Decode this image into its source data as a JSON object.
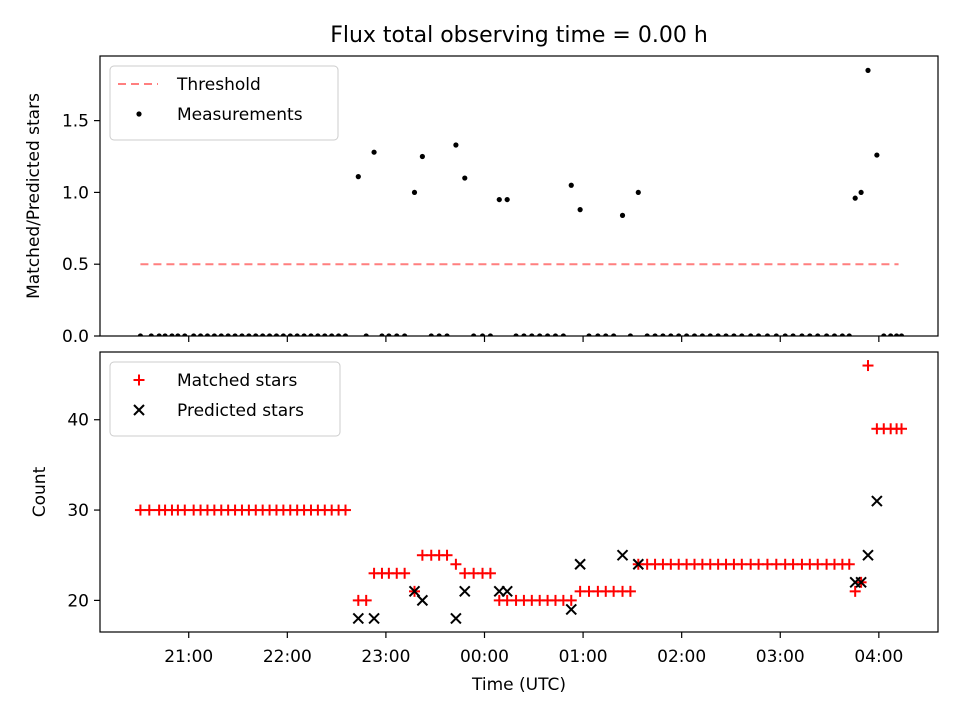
{
  "figure": {
    "title": "Flux total observing time = 0.00 h",
    "xlabel": "Time (UTC)",
    "xticks": [
      {
        "t": 20.9,
        "label": "21:00"
      },
      {
        "t": 21.9,
        "label": "22:00"
      },
      {
        "t": 22.9,
        "label": "23:00"
      },
      {
        "t": 23.9,
        "label": "00:00"
      },
      {
        "t": 24.9,
        "label": "01:00"
      },
      {
        "t": 25.9,
        "label": "02:00"
      },
      {
        "t": 26.9,
        "label": "03:00"
      },
      {
        "t": 27.9,
        "label": "04:00"
      }
    ],
    "xlim": [
      20.0,
      28.5
    ]
  },
  "chart_data": [
    {
      "type": "scatter",
      "ylabel": "Matched/Predicted stars",
      "ylim": [
        0,
        1.95
      ],
      "yticks": [
        0.0,
        0.5,
        1.0,
        1.5
      ],
      "ytick_labels": [
        "0.0",
        "0.5",
        "1.0",
        "1.5"
      ],
      "legend": {
        "position": "top-left",
        "entries": [
          "Threshold",
          "Measurements"
        ]
      },
      "threshold": {
        "name": "Threshold",
        "y": 0.5,
        "x_range": [
          20.41,
          28.1
        ],
        "color": "#ff7f7f",
        "style": "dashed"
      },
      "series": [
        {
          "name": "Measurements",
          "color": "#000000",
          "points": [
            {
              "x": 20.41,
              "y": 0
            },
            {
              "x": 20.52,
              "y": 0
            },
            {
              "x": 20.6,
              "y": 0
            },
            {
              "x": 20.66,
              "y": 0
            },
            {
              "x": 20.73,
              "y": 0
            },
            {
              "x": 20.79,
              "y": 0
            },
            {
              "x": 20.86,
              "y": 0
            },
            {
              "x": 20.95,
              "y": 0
            },
            {
              "x": 21.02,
              "y": 0
            },
            {
              "x": 21.09,
              "y": 0
            },
            {
              "x": 21.16,
              "y": 0
            },
            {
              "x": 21.23,
              "y": 0
            },
            {
              "x": 21.3,
              "y": 0
            },
            {
              "x": 21.37,
              "y": 0
            },
            {
              "x": 21.44,
              "y": 0
            },
            {
              "x": 21.51,
              "y": 0
            },
            {
              "x": 21.58,
              "y": 0
            },
            {
              "x": 21.65,
              "y": 0
            },
            {
              "x": 21.72,
              "y": 0
            },
            {
              "x": 21.79,
              "y": 0
            },
            {
              "x": 21.86,
              "y": 0
            },
            {
              "x": 21.93,
              "y": 0
            },
            {
              "x": 22.0,
              "y": 0
            },
            {
              "x": 22.07,
              "y": 0
            },
            {
              "x": 22.14,
              "y": 0
            },
            {
              "x": 22.21,
              "y": 0
            },
            {
              "x": 22.28,
              "y": 0
            },
            {
              "x": 22.35,
              "y": 0
            },
            {
              "x": 22.42,
              "y": 0
            },
            {
              "x": 22.49,
              "y": 0
            },
            {
              "x": 22.62,
              "y": 1.11
            },
            {
              "x": 22.7,
              "y": 0
            },
            {
              "x": 22.78,
              "y": 1.28
            },
            {
              "x": 22.86,
              "y": 0
            },
            {
              "x": 22.93,
              "y": 0
            },
            {
              "x": 23.01,
              "y": 0
            },
            {
              "x": 23.09,
              "y": 0
            },
            {
              "x": 23.19,
              "y": 1.0
            },
            {
              "x": 23.27,
              "y": 1.25
            },
            {
              "x": 23.36,
              "y": 0
            },
            {
              "x": 23.44,
              "y": 0
            },
            {
              "x": 23.52,
              "y": 0
            },
            {
              "x": 23.61,
              "y": 1.33
            },
            {
              "x": 23.7,
              "y": 1.1
            },
            {
              "x": 23.79,
              "y": 0
            },
            {
              "x": 23.88,
              "y": 0
            },
            {
              "x": 23.96,
              "y": 0
            },
            {
              "x": 24.05,
              "y": 0.95
            },
            {
              "x": 24.13,
              "y": 0.95
            },
            {
              "x": 24.22,
              "y": 0
            },
            {
              "x": 24.3,
              "y": 0
            },
            {
              "x": 24.38,
              "y": 0
            },
            {
              "x": 24.46,
              "y": 0
            },
            {
              "x": 24.54,
              "y": 0
            },
            {
              "x": 24.62,
              "y": 0
            },
            {
              "x": 24.7,
              "y": 0
            },
            {
              "x": 24.78,
              "y": 1.05
            },
            {
              "x": 24.87,
              "y": 0.88
            },
            {
              "x": 24.96,
              "y": 0
            },
            {
              "x": 25.05,
              "y": 0
            },
            {
              "x": 25.13,
              "y": 0
            },
            {
              "x": 25.21,
              "y": 0
            },
            {
              "x": 25.3,
              "y": 0.84
            },
            {
              "x": 25.38,
              "y": 0
            },
            {
              "x": 25.46,
              "y": 1.0
            },
            {
              "x": 25.55,
              "y": 0
            },
            {
              "x": 25.63,
              "y": 0
            },
            {
              "x": 25.71,
              "y": 0
            },
            {
              "x": 25.79,
              "y": 0
            },
            {
              "x": 25.87,
              "y": 0
            },
            {
              "x": 25.95,
              "y": 0
            },
            {
              "x": 26.03,
              "y": 0
            },
            {
              "x": 26.11,
              "y": 0
            },
            {
              "x": 26.19,
              "y": 0
            },
            {
              "x": 26.27,
              "y": 0
            },
            {
              "x": 26.35,
              "y": 0
            },
            {
              "x": 26.43,
              "y": 0
            },
            {
              "x": 26.51,
              "y": 0
            },
            {
              "x": 26.6,
              "y": 0
            },
            {
              "x": 26.68,
              "y": 0
            },
            {
              "x": 26.77,
              "y": 0
            },
            {
              "x": 26.86,
              "y": 0
            },
            {
              "x": 26.95,
              "y": 0
            },
            {
              "x": 27.03,
              "y": 0
            },
            {
              "x": 27.12,
              "y": 0
            },
            {
              "x": 27.2,
              "y": 0
            },
            {
              "x": 27.28,
              "y": 0
            },
            {
              "x": 27.37,
              "y": 0
            },
            {
              "x": 27.45,
              "y": 0
            },
            {
              "x": 27.53,
              "y": 0
            },
            {
              "x": 27.6,
              "y": 0
            },
            {
              "x": 27.66,
              "y": 0.96
            },
            {
              "x": 27.72,
              "y": 1.0
            },
            {
              "x": 27.79,
              "y": 1.85
            },
            {
              "x": 27.88,
              "y": 1.26
            },
            {
              "x": 27.95,
              "y": 0
            },
            {
              "x": 28.02,
              "y": 0
            },
            {
              "x": 28.08,
              "y": 0
            },
            {
              "x": 28.13,
              "y": 0
            }
          ]
        }
      ]
    },
    {
      "type": "scatter",
      "ylabel": "Count",
      "ylim": [
        16.5,
        47.5
      ],
      "yticks": [
        20,
        30,
        40
      ],
      "ytick_labels": [
        "20",
        "30",
        "40"
      ],
      "legend": {
        "position": "top-left",
        "entries": [
          "Matched stars",
          "Predicted stars"
        ]
      },
      "series": [
        {
          "name": "Matched stars",
          "marker": "plus",
          "color": "#ff0000",
          "points": [
            {
              "x": 20.41,
              "y": 30
            },
            {
              "x": 20.5,
              "y": 30
            },
            {
              "x": 20.6,
              "y": 30
            },
            {
              "x": 20.66,
              "y": 30
            },
            {
              "x": 20.73,
              "y": 30
            },
            {
              "x": 20.79,
              "y": 30
            },
            {
              "x": 20.86,
              "y": 30
            },
            {
              "x": 20.95,
              "y": 30
            },
            {
              "x": 21.02,
              "y": 30
            },
            {
              "x": 21.09,
              "y": 30
            },
            {
              "x": 21.16,
              "y": 30
            },
            {
              "x": 21.23,
              "y": 30
            },
            {
              "x": 21.3,
              "y": 30
            },
            {
              "x": 21.37,
              "y": 30
            },
            {
              "x": 21.44,
              "y": 30
            },
            {
              "x": 21.51,
              "y": 30
            },
            {
              "x": 21.58,
              "y": 30
            },
            {
              "x": 21.65,
              "y": 30
            },
            {
              "x": 21.72,
              "y": 30
            },
            {
              "x": 21.79,
              "y": 30
            },
            {
              "x": 21.86,
              "y": 30
            },
            {
              "x": 21.93,
              "y": 30
            },
            {
              "x": 22.0,
              "y": 30
            },
            {
              "x": 22.07,
              "y": 30
            },
            {
              "x": 22.14,
              "y": 30
            },
            {
              "x": 22.21,
              "y": 30
            },
            {
              "x": 22.28,
              "y": 30
            },
            {
              "x": 22.35,
              "y": 30
            },
            {
              "x": 22.42,
              "y": 30
            },
            {
              "x": 22.49,
              "y": 30
            },
            {
              "x": 22.62,
              "y": 20
            },
            {
              "x": 22.7,
              "y": 20
            },
            {
              "x": 22.78,
              "y": 23
            },
            {
              "x": 22.86,
              "y": 23
            },
            {
              "x": 22.93,
              "y": 23
            },
            {
              "x": 23.01,
              "y": 23
            },
            {
              "x": 23.09,
              "y": 23
            },
            {
              "x": 23.19,
              "y": 21
            },
            {
              "x": 23.27,
              "y": 25
            },
            {
              "x": 23.36,
              "y": 25
            },
            {
              "x": 23.44,
              "y": 25
            },
            {
              "x": 23.52,
              "y": 25
            },
            {
              "x": 23.61,
              "y": 24
            },
            {
              "x": 23.7,
              "y": 23
            },
            {
              "x": 23.79,
              "y": 23
            },
            {
              "x": 23.88,
              "y": 23
            },
            {
              "x": 23.96,
              "y": 23
            },
            {
              "x": 24.05,
              "y": 20
            },
            {
              "x": 24.13,
              "y": 20
            },
            {
              "x": 24.22,
              "y": 20
            },
            {
              "x": 24.3,
              "y": 20
            },
            {
              "x": 24.38,
              "y": 20
            },
            {
              "x": 24.46,
              "y": 20
            },
            {
              "x": 24.54,
              "y": 20
            },
            {
              "x": 24.62,
              "y": 20
            },
            {
              "x": 24.7,
              "y": 20
            },
            {
              "x": 24.78,
              "y": 20
            },
            {
              "x": 24.87,
              "y": 21
            },
            {
              "x": 24.96,
              "y": 21
            },
            {
              "x": 25.05,
              "y": 21
            },
            {
              "x": 25.13,
              "y": 21
            },
            {
              "x": 25.21,
              "y": 21
            },
            {
              "x": 25.3,
              "y": 21
            },
            {
              "x": 25.38,
              "y": 21
            },
            {
              "x": 25.46,
              "y": 24
            },
            {
              "x": 25.55,
              "y": 24
            },
            {
              "x": 25.63,
              "y": 24
            },
            {
              "x": 25.71,
              "y": 24
            },
            {
              "x": 25.79,
              "y": 24
            },
            {
              "x": 25.87,
              "y": 24
            },
            {
              "x": 25.95,
              "y": 24
            },
            {
              "x": 26.03,
              "y": 24
            },
            {
              "x": 26.11,
              "y": 24
            },
            {
              "x": 26.19,
              "y": 24
            },
            {
              "x": 26.27,
              "y": 24
            },
            {
              "x": 26.35,
              "y": 24
            },
            {
              "x": 26.43,
              "y": 24
            },
            {
              "x": 26.51,
              "y": 24
            },
            {
              "x": 26.6,
              "y": 24
            },
            {
              "x": 26.68,
              "y": 24
            },
            {
              "x": 26.77,
              "y": 24
            },
            {
              "x": 26.86,
              "y": 24
            },
            {
              "x": 26.95,
              "y": 24
            },
            {
              "x": 27.03,
              "y": 24
            },
            {
              "x": 27.12,
              "y": 24
            },
            {
              "x": 27.2,
              "y": 24
            },
            {
              "x": 27.28,
              "y": 24
            },
            {
              "x": 27.37,
              "y": 24
            },
            {
              "x": 27.45,
              "y": 24
            },
            {
              "x": 27.53,
              "y": 24
            },
            {
              "x": 27.6,
              "y": 24
            },
            {
              "x": 27.66,
              "y": 21
            },
            {
              "x": 27.72,
              "y": 22
            },
            {
              "x": 27.79,
              "y": 46
            },
            {
              "x": 27.88,
              "y": 39
            },
            {
              "x": 27.95,
              "y": 39
            },
            {
              "x": 28.02,
              "y": 39
            },
            {
              "x": 28.08,
              "y": 39
            },
            {
              "x": 28.13,
              "y": 39
            }
          ]
        },
        {
          "name": "Predicted stars",
          "marker": "x",
          "color": "#000000",
          "points": [
            {
              "x": 22.62,
              "y": 18
            },
            {
              "x": 22.78,
              "y": 18
            },
            {
              "x": 23.19,
              "y": 21
            },
            {
              "x": 23.27,
              "y": 20
            },
            {
              "x": 23.61,
              "y": 18
            },
            {
              "x": 23.7,
              "y": 21
            },
            {
              "x": 24.05,
              "y": 21
            },
            {
              "x": 24.13,
              "y": 21
            },
            {
              "x": 24.78,
              "y": 19
            },
            {
              "x": 24.87,
              "y": 24
            },
            {
              "x": 25.3,
              "y": 25
            },
            {
              "x": 25.46,
              "y": 24
            },
            {
              "x": 27.66,
              "y": 22
            },
            {
              "x": 27.72,
              "y": 22
            },
            {
              "x": 27.79,
              "y": 25
            },
            {
              "x": 27.88,
              "y": 31
            }
          ]
        }
      ]
    }
  ]
}
